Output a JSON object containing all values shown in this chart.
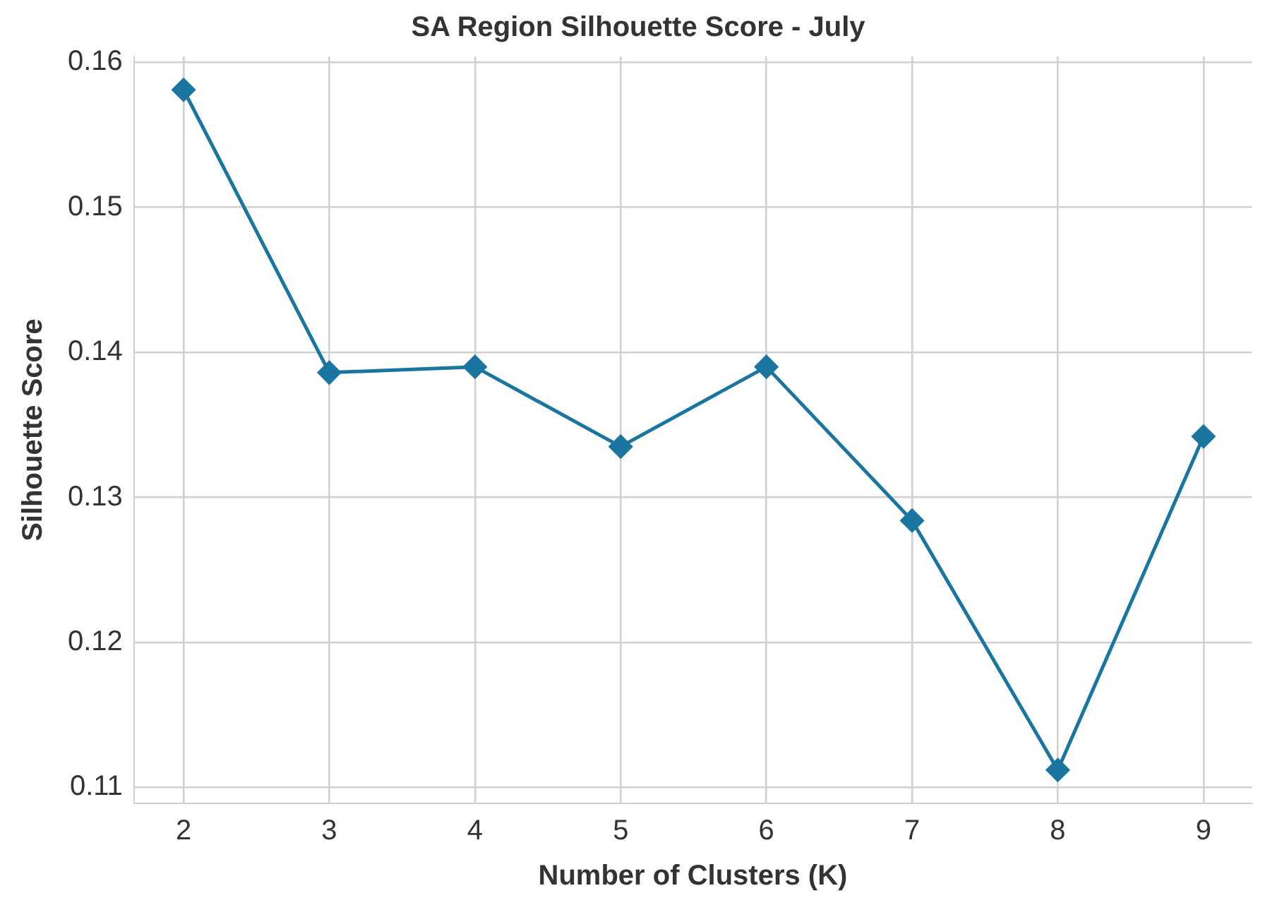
{
  "chart_data": {
    "type": "line",
    "title": "SA Region Silhouette Score - July",
    "xlabel": "Number of Clusters (K)",
    "ylabel": "Silhouette Score",
    "x": [
      2,
      3,
      4,
      5,
      6,
      7,
      8,
      9
    ],
    "series": [
      {
        "color": "#1a76a0",
        "values": [
          0.1581,
          0.1386,
          0.139,
          0.1335,
          0.139,
          0.1284,
          0.1112,
          0.1342
        ]
      }
    ],
    "xlim": [
      1.66,
      9.33
    ],
    "xticks": [
      2,
      3,
      4,
      5,
      6,
      7,
      8,
      9
    ],
    "ylim": [
      0.1089,
      0.1604
    ],
    "yticks": [
      0.11,
      0.12,
      0.13,
      0.14,
      0.15,
      0.16
    ],
    "grid": true,
    "legend": false,
    "marker": "diamond",
    "line_style": "solid"
  }
}
